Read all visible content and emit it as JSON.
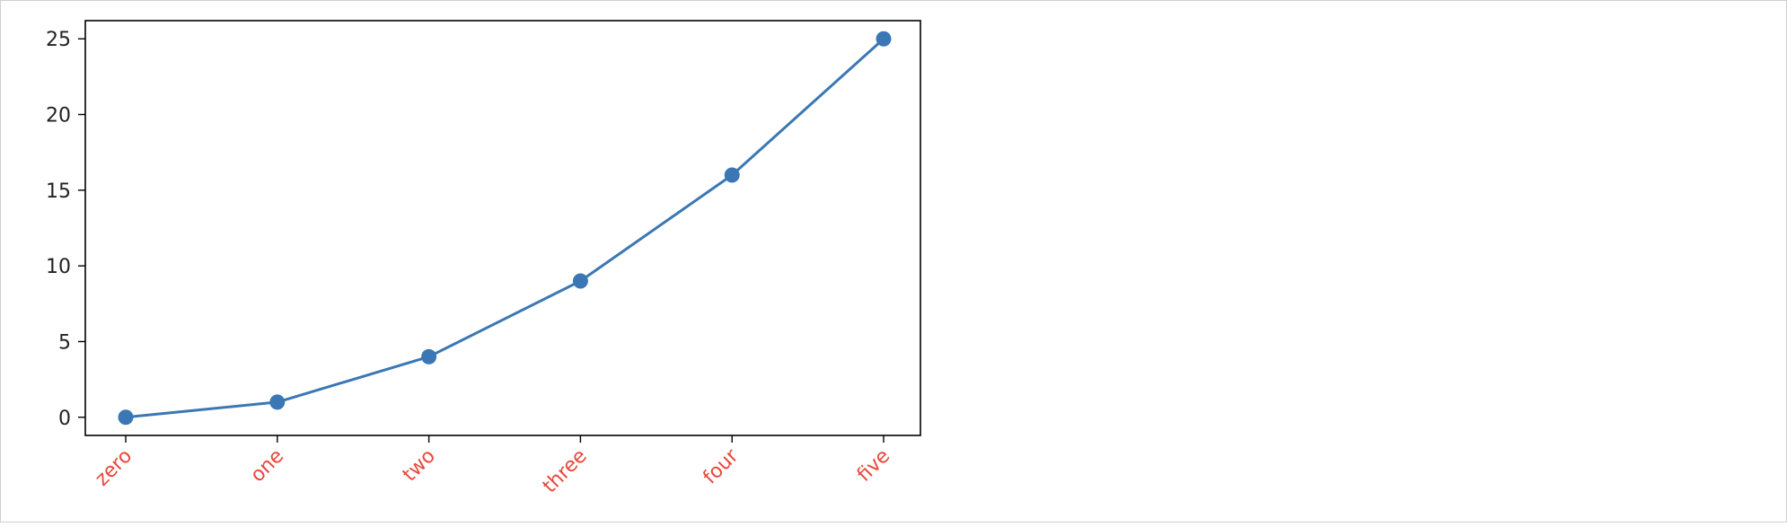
{
  "chart_data": {
    "type": "line",
    "title": "",
    "xlabel": "",
    "ylabel": "",
    "categories": [
      "zero",
      "one",
      "two",
      "three",
      "four",
      "five"
    ],
    "series": [
      {
        "values": [
          0,
          1,
          4,
          9,
          16,
          25
        ]
      }
    ],
    "ylim": [
      -1.2,
      26.2
    ],
    "yticks": [
      0,
      5,
      10,
      15,
      20,
      25
    ],
    "grid": false,
    "legend": "none",
    "markers": true,
    "colors": {
      "line": "#3a77b4",
      "marker": "#3a77b4",
      "xtick_label": "#e8483c",
      "ytick_label": "#222222",
      "axes": "#000000"
    }
  }
}
